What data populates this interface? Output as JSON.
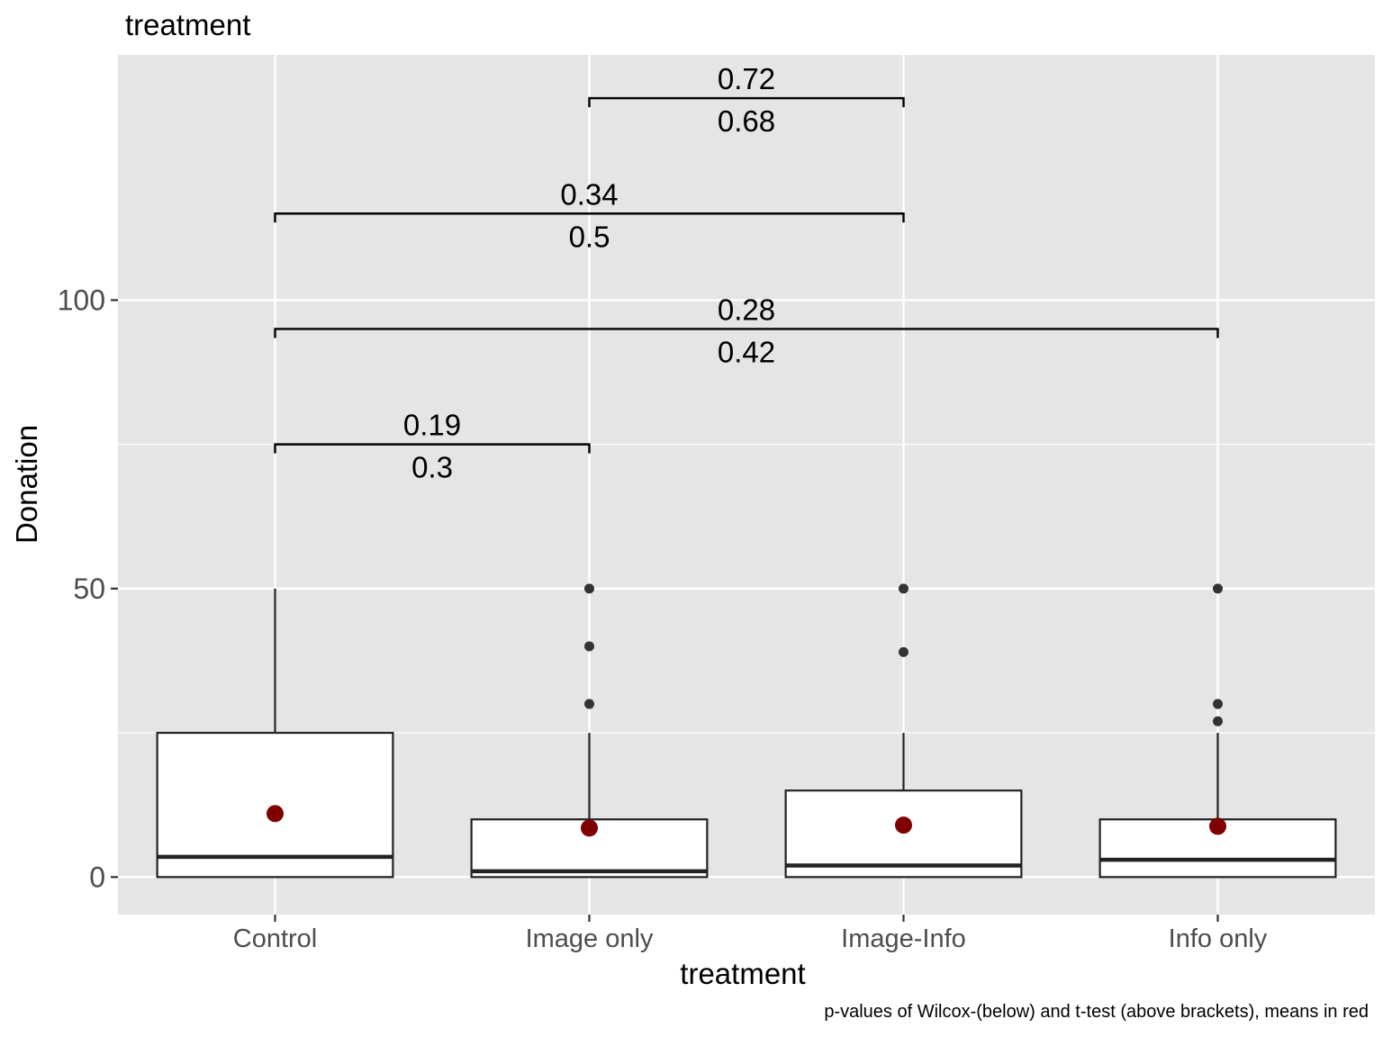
{
  "chart_data": {
    "type": "box",
    "title": "treatment",
    "xlabel": "treatment",
    "ylabel": "Donation",
    "caption": "p-values of Wilcox-(below) and  t-test (above brackets), means in red",
    "categories": [
      "Control",
      "Image only",
      "Image-Info",
      "Info only"
    ],
    "ylim": [
      -6.5,
      142.5
    ],
    "yticks": [
      0,
      50,
      100
    ],
    "ytick_labels": [
      "0",
      "50",
      "100"
    ],
    "grid": true,
    "boxes": [
      {
        "category": "Control",
        "min": 0,
        "q1": 0,
        "median": 3.5,
        "q3": 25,
        "max": 50,
        "mean": 11,
        "outliers": []
      },
      {
        "category": "Image only",
        "min": 0,
        "q1": 0,
        "median": 1,
        "q3": 10,
        "max": 25,
        "mean": 8.5,
        "outliers": [
          50,
          40,
          30
        ]
      },
      {
        "category": "Image-Info",
        "min": 0,
        "q1": 0,
        "median": 2,
        "q3": 15,
        "max": 25,
        "mean": 9,
        "outliers": [
          50,
          39
        ]
      },
      {
        "category": "Info only",
        "min": 0,
        "q1": 0,
        "median": 3,
        "q3": 10,
        "max": 25,
        "mean": 8.8,
        "outliers": [
          50,
          30,
          27
        ]
      }
    ],
    "comparisons": [
      {
        "from": "Control",
        "to": "Image only",
        "y": 75,
        "t_test_p": "0.19",
        "wilcox_p": "0.3"
      },
      {
        "from": "Control",
        "to": "Info only",
        "y": 95,
        "t_test_p": "0.28",
        "wilcox_p": "0.42"
      },
      {
        "from": "Control",
        "to": "Image-Info",
        "y": 115,
        "t_test_p": "0.34",
        "wilcox_p": "0.5"
      },
      {
        "from": "Image only",
        "to": "Image-Info",
        "y": 135,
        "t_test_p": "0.72",
        "wilcox_p": "0.68"
      }
    ],
    "colors": {
      "panel": "#e5e5e5",
      "grid": "#ffffff",
      "box_fill": "#ffffff",
      "box_stroke": "#222222",
      "mean": "#7f0000",
      "outlier": "#333333",
      "text": "#000000",
      "tick_text": "#4d4d4d"
    }
  }
}
